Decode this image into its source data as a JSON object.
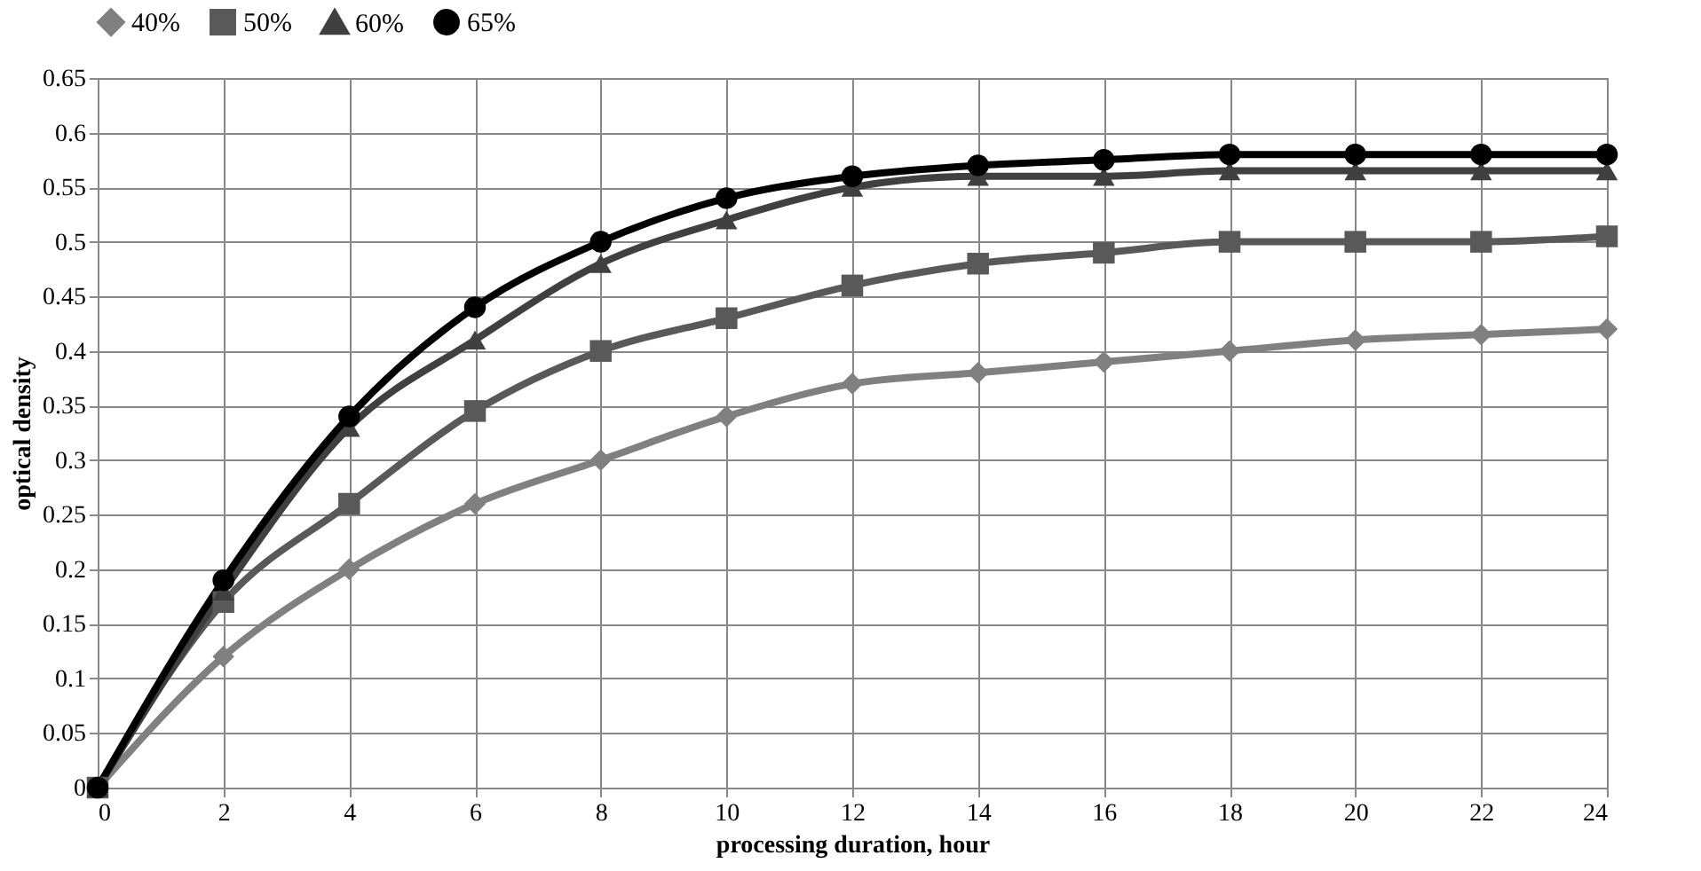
{
  "chart_data": {
    "type": "line",
    "xlabel": "processing duration, hour",
    "ylabel": "optical density",
    "x": [
      0,
      2,
      4,
      6,
      8,
      10,
      12,
      14,
      16,
      18,
      20,
      22,
      24
    ],
    "xlim": [
      0,
      24
    ],
    "xticks": [
      0,
      2,
      4,
      6,
      8,
      10,
      12,
      14,
      16,
      18,
      20,
      22,
      24
    ],
    "ylim": [
      0,
      0.65
    ],
    "yticks": [
      0,
      0.05,
      0.1,
      0.15,
      0.2,
      0.25,
      0.3,
      0.35,
      0.4,
      0.45,
      0.5,
      0.55,
      0.6,
      0.65
    ],
    "grid": true,
    "legend": "top",
    "line_style": "solid",
    "series": [
      {
        "name": "40%",
        "color": "#808080",
        "marker": "diamond",
        "values": [
          0,
          0.12,
          0.2,
          0.26,
          0.3,
          0.34,
          0.37,
          0.38,
          0.39,
          0.4,
          0.41,
          0.415,
          0.42
        ]
      },
      {
        "name": "50%",
        "color": "#595959",
        "marker": "square",
        "values": [
          0,
          0.17,
          0.26,
          0.345,
          0.4,
          0.43,
          0.46,
          0.48,
          0.49,
          0.5,
          0.5,
          0.5,
          0.505
        ]
      },
      {
        "name": "60%",
        "color": "#404040",
        "marker": "triangle",
        "values": [
          0,
          0.18,
          0.33,
          0.41,
          0.48,
          0.52,
          0.55,
          0.56,
          0.56,
          0.565,
          0.565,
          0.565,
          0.565
        ]
      },
      {
        "name": "65%",
        "color": "#000000",
        "marker": "circle",
        "values": [
          0,
          0.19,
          0.34,
          0.44,
          0.5,
          0.54,
          0.56,
          0.57,
          0.575,
          0.58,
          0.58,
          0.58,
          0.58
        ]
      }
    ]
  }
}
